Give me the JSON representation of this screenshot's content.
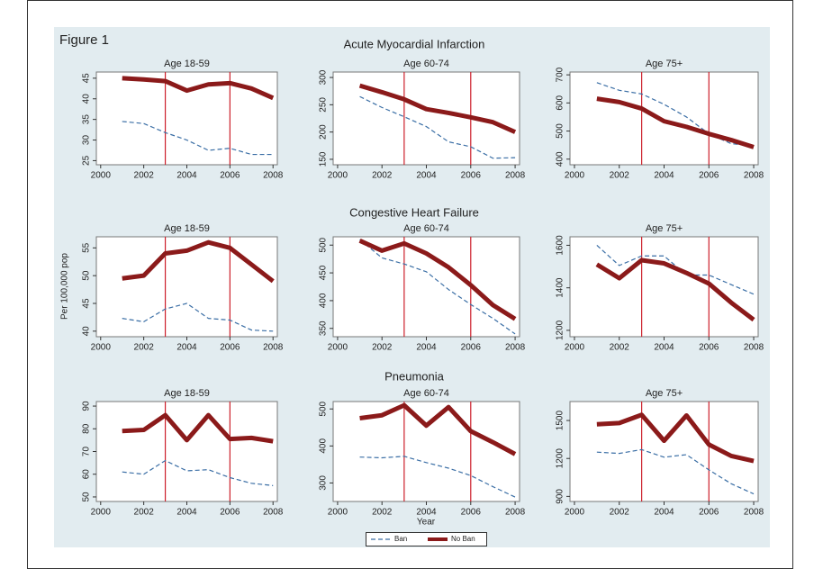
{
  "figure_title": "Figure 1",
  "row_titles": [
    "Acute Myocardial Infarction",
    "Congestive Heart Failure",
    "Pneumonia"
  ],
  "ylabel": "Per 100,000 pop",
  "xlabel": "Year",
  "chart_data": [
    {
      "type": "line",
      "title": "Age 18-59",
      "x": [
        2001,
        2002,
        2003,
        2004,
        2005,
        2006,
        2007,
        2008
      ],
      "xlim": [
        1999.8,
        2008.2
      ],
      "xticks": [
        2000,
        2002,
        2004,
        2006,
        2008
      ],
      "ylim": [
        24,
        46.5
      ],
      "yticks": [
        25,
        30,
        35,
        40,
        45
      ],
      "vlines": [
        2003,
        2006
      ],
      "series": [
        {
          "name": "Ban",
          "color": "#3a6ea5",
          "values": [
            34.5,
            34,
            31.8,
            30,
            27.5,
            28,
            26.5,
            26.5
          ]
        },
        {
          "name": "No Ban",
          "color": "#8b1a1a",
          "values": [
            45,
            44.7,
            44.3,
            42,
            43.5,
            43.8,
            42.5,
            40.2
          ]
        }
      ]
    },
    {
      "type": "line",
      "title": "Age 60-74",
      "x": [
        2001,
        2002,
        2003,
        2004,
        2005,
        2006,
        2007,
        2008
      ],
      "xlim": [
        1999.8,
        2008.2
      ],
      "xticks": [
        2000,
        2002,
        2004,
        2006,
        2008
      ],
      "ylim": [
        140,
        310
      ],
      "yticks": [
        150,
        200,
        250,
        300
      ],
      "vlines": [
        2003,
        2006
      ],
      "series": [
        {
          "name": "Ban",
          "color": "#3a6ea5",
          "values": [
            265,
            245,
            228,
            210,
            182,
            173,
            152,
            153
          ]
        },
        {
          "name": "No Ban",
          "color": "#8b1a1a",
          "values": [
            285,
            273,
            260,
            242,
            235,
            227,
            218,
            200
          ]
        }
      ]
    },
    {
      "type": "line",
      "title": "Age 75+",
      "x": [
        2001,
        2002,
        2003,
        2004,
        2005,
        2006,
        2007,
        2008
      ],
      "xlim": [
        1999.8,
        2008.2
      ],
      "xticks": [
        2000,
        2002,
        2004,
        2006,
        2008
      ],
      "ylim": [
        380,
        710
      ],
      "yticks": [
        400,
        500,
        600,
        700
      ],
      "vlines": [
        2003,
        2006
      ],
      "series": [
        {
          "name": "Ban",
          "color": "#3a6ea5",
          "values": [
            672,
            645,
            632,
            595,
            550,
            490,
            455,
            448
          ]
        },
        {
          "name": "No Ban",
          "color": "#8b1a1a",
          "values": [
            615,
            603,
            580,
            535,
            515,
            490,
            468,
            443
          ]
        }
      ]
    },
    {
      "type": "line",
      "title": "Age 18-59",
      "x": [
        2001,
        2002,
        2003,
        2004,
        2005,
        2006,
        2007,
        2008
      ],
      "xlim": [
        1999.8,
        2008.2
      ],
      "xticks": [
        2000,
        2002,
        2004,
        2006,
        2008
      ],
      "ylim": [
        39,
        57
      ],
      "yticks": [
        40,
        45,
        50,
        55
      ],
      "vlines": [
        2003,
        2006
      ],
      "series": [
        {
          "name": "Ban",
          "color": "#3a6ea5",
          "values": [
            42.3,
            41.7,
            44,
            45,
            42.3,
            42,
            40.2,
            40
          ]
        },
        {
          "name": "No Ban",
          "color": "#8b1a1a",
          "values": [
            49.5,
            50,
            54,
            54.5,
            56,
            55,
            52,
            49
          ]
        }
      ]
    },
    {
      "type": "line",
      "title": "Age 60-74",
      "x": [
        2001,
        2002,
        2003,
        2004,
        2005,
        2006,
        2007,
        2008
      ],
      "xlim": [
        1999.8,
        2008.2
      ],
      "xticks": [
        2000,
        2002,
        2004,
        2006,
        2008
      ],
      "ylim": [
        335,
        515
      ],
      "yticks": [
        350,
        400,
        450,
        500
      ],
      "vlines": [
        2003,
        2006
      ],
      "series": [
        {
          "name": "Ban",
          "color": "#3a6ea5",
          "values": [
            510,
            477,
            466,
            452,
            420,
            393,
            368,
            340
          ]
        },
        {
          "name": "No Ban",
          "color": "#8b1a1a",
          "values": [
            508,
            490,
            503,
            485,
            460,
            428,
            392,
            367
          ]
        }
      ]
    },
    {
      "type": "line",
      "title": "Age 75+",
      "x": [
        2001,
        2002,
        2003,
        2004,
        2005,
        2006,
        2007,
        2008
      ],
      "xlim": [
        1999.8,
        2008.2
      ],
      "xticks": [
        2000,
        2002,
        2004,
        2006,
        2008
      ],
      "ylim": [
        1170,
        1640
      ],
      "yticks": [
        1200,
        1400,
        1600
      ],
      "vlines": [
        2003,
        2006
      ],
      "series": [
        {
          "name": "Ban",
          "color": "#3a6ea5",
          "values": [
            1600,
            1505,
            1550,
            1550,
            1460,
            1460,
            1415,
            1370
          ]
        },
        {
          "name": "No Ban",
          "color": "#8b1a1a",
          "values": [
            1510,
            1445,
            1530,
            1515,
            1470,
            1420,
            1330,
            1250
          ]
        }
      ]
    },
    {
      "type": "line",
      "title": "Age 18-59",
      "x": [
        2001,
        2002,
        2003,
        2004,
        2005,
        2006,
        2007,
        2008
      ],
      "xlim": [
        1999.8,
        2008.2
      ],
      "xticks": [
        2000,
        2002,
        2004,
        2006,
        2008
      ],
      "ylim": [
        48,
        92
      ],
      "yticks": [
        50,
        60,
        70,
        80,
        90
      ],
      "vlines": [
        2003,
        2006
      ],
      "series": [
        {
          "name": "Ban",
          "color": "#3a6ea5",
          "values": [
            61,
            60,
            66,
            61.5,
            62,
            58.5,
            56,
            55
          ]
        },
        {
          "name": "No Ban",
          "color": "#8b1a1a",
          "values": [
            79,
            79.5,
            86,
            75,
            86,
            75.5,
            76,
            74.5
          ]
        }
      ]
    },
    {
      "type": "line",
      "title": "Age 60-74",
      "x": [
        2001,
        2002,
        2003,
        2004,
        2005,
        2006,
        2007,
        2008
      ],
      "xlim": [
        1999.8,
        2008.2
      ],
      "xticks": [
        2000,
        2002,
        2004,
        2006,
        2008
      ],
      "ylim": [
        250,
        520
      ],
      "yticks": [
        300,
        400,
        500
      ],
      "vlines": [
        2003,
        2006
      ],
      "series": [
        {
          "name": "Ban",
          "color": "#3a6ea5",
          "values": [
            370,
            368,
            372,
            355,
            340,
            320,
            290,
            262
          ]
        },
        {
          "name": "No Ban",
          "color": "#8b1a1a",
          "values": [
            475,
            483,
            510,
            455,
            505,
            440,
            410,
            378
          ]
        }
      ]
    },
    {
      "type": "line",
      "title": "Age 75+",
      "x": [
        2001,
        2002,
        2003,
        2004,
        2005,
        2006,
        2007,
        2008
      ],
      "xlim": [
        1999.8,
        2008.2
      ],
      "xticks": [
        2000,
        2002,
        2004,
        2006,
        2008
      ],
      "ylim": [
        860,
        1650
      ],
      "yticks": [
        900,
        1200,
        1500
      ],
      "vlines": [
        2003,
        2006
      ],
      "series": [
        {
          "name": "Ban",
          "color": "#3a6ea5",
          "values": [
            1250,
            1240,
            1270,
            1210,
            1230,
            1110,
            1000,
            920
          ]
        },
        {
          "name": "No Ban",
          "color": "#8b1a1a",
          "values": [
            1470,
            1480,
            1545,
            1340,
            1540,
            1310,
            1220,
            1180
          ]
        }
      ]
    }
  ]
}
